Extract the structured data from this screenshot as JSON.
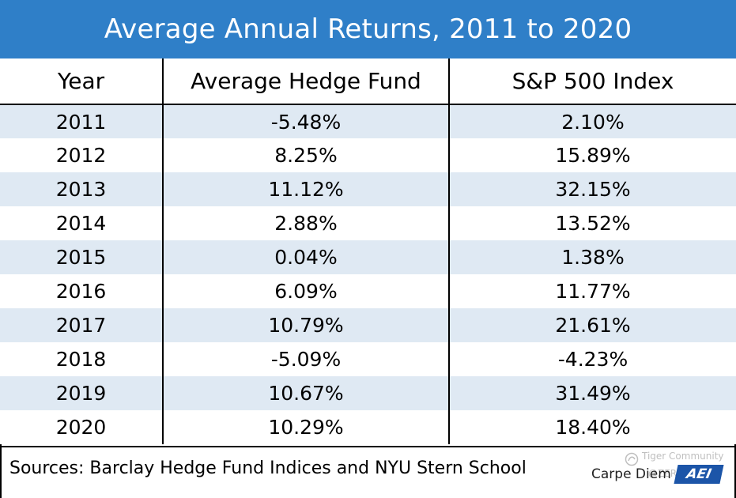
{
  "title": "Average Annual Returns, 2011 to 2020",
  "table": {
    "headers": [
      "Year",
      "Average Hedge Fund",
      "S&P 500 Index"
    ],
    "rows": [
      [
        "2011",
        "-5.48%",
        "2.10%"
      ],
      [
        "2012",
        "8.25%",
        "15.89%"
      ],
      [
        "2013",
        "11.12%",
        "32.15%"
      ],
      [
        "2014",
        "2.88%",
        "13.52%"
      ],
      [
        "2015",
        "0.04%",
        "1.38%"
      ],
      [
        "2016",
        "6.09%",
        "11.77%"
      ],
      [
        "2017",
        "10.79%",
        "21.61%"
      ],
      [
        "2018",
        "-5.09%",
        "-4.23%"
      ],
      [
        "2019",
        "10.67%",
        "31.49%"
      ],
      [
        "2020",
        "10.29%",
        "18.40%"
      ]
    ]
  },
  "chart_data": {
    "type": "table",
    "title": "Average Annual Returns, 2011 to 2020",
    "columns": [
      "Year",
      "Average Hedge Fund",
      "S&P 500 Index"
    ],
    "categories": [
      "2011",
      "2012",
      "2013",
      "2014",
      "2015",
      "2016",
      "2017",
      "2018",
      "2019",
      "2020"
    ],
    "series": [
      {
        "name": "Average Hedge Fund",
        "values": [
          -5.48,
          8.25,
          11.12,
          2.88,
          0.04,
          6.09,
          10.79,
          -5.09,
          10.67,
          10.29
        ]
      },
      {
        "name": "S&P 500 Index",
        "values": [
          2.1,
          15.89,
          32.15,
          13.52,
          1.38,
          11.77,
          21.61,
          -4.23,
          31.49,
          18.4
        ]
      }
    ],
    "unit": "%"
  },
  "footer": {
    "sources": "Sources: Barclay Hedge Fund Indices and NYU Stern School",
    "brand_text": "Carpe Diem",
    "brand_logo": "AEI"
  },
  "watermark": {
    "line1": "Tiger Community",
    "line2": "@ZEROHERO",
    "icon": "tiger-community-icon"
  },
  "colors": {
    "title_bar": "#2f7fc8",
    "row_stripe": "#dfe9f3",
    "brand_logo": "#1c55a8"
  }
}
